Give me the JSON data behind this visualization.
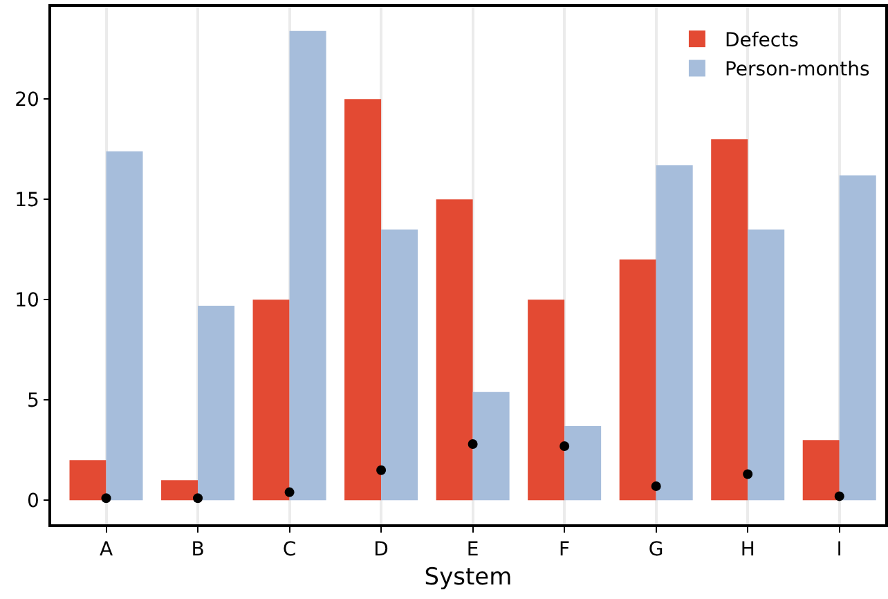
{
  "chart_data": {
    "type": "bar",
    "xlabel": "System",
    "categories": [
      "A",
      "B",
      "C",
      "D",
      "E",
      "F",
      "G",
      "H",
      "I"
    ],
    "series": [
      {
        "name": "Defects",
        "color": "#e34a33",
        "values": [
          2,
          1,
          10,
          20,
          15,
          10,
          12,
          18,
          3
        ]
      },
      {
        "name": "Person-months",
        "color": "#a6bddb",
        "values": [
          17.4,
          9.7,
          23.4,
          13.5,
          5.4,
          3.7,
          16.7,
          13.5,
          16.2
        ]
      },
      {
        "type": "scatter",
        "color": "#000000",
        "marker": "circle",
        "x": [
          "A",
          "B",
          "C",
          "D",
          "E",
          "F",
          "G",
          "H",
          "I"
        ],
        "values": [
          0.1,
          0.1,
          0.4,
          1.5,
          2.8,
          2.7,
          0.7,
          1.3,
          0.2
        ]
      }
    ],
    "ylim": [
      -1.2,
      24.6
    ],
    "yticks": [
      0,
      5,
      10,
      15,
      20
    ],
    "grid": "x",
    "legend": "top right"
  }
}
